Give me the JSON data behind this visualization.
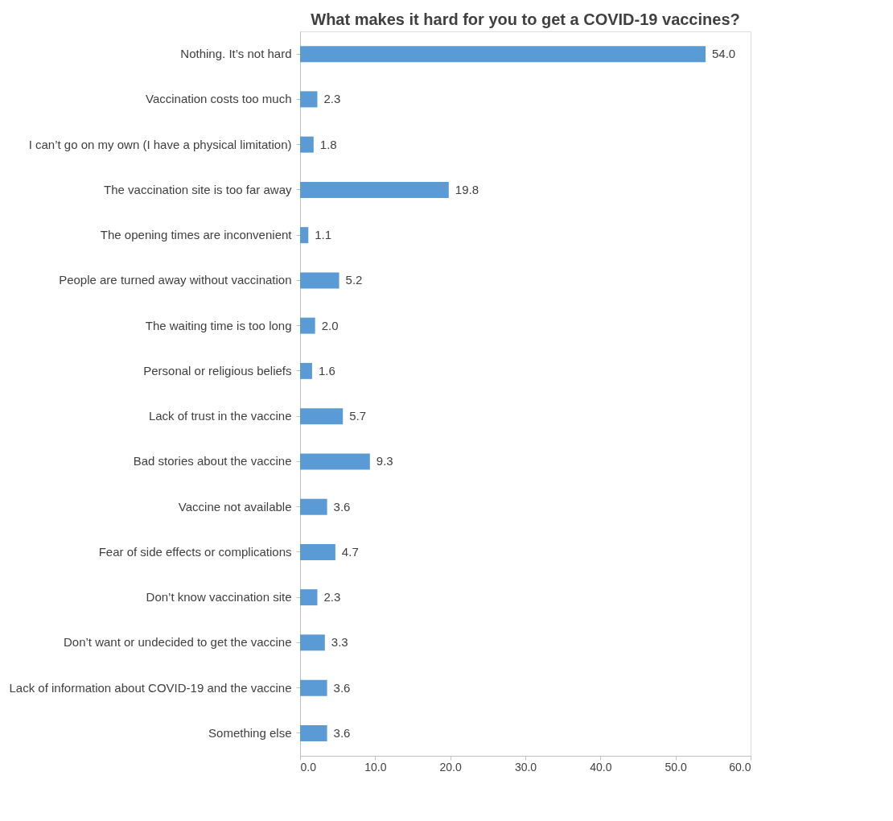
{
  "chart_data": {
    "type": "bar",
    "orientation": "horizontal",
    "title": "What makes it hard for you to get a COVID-19 vaccines?",
    "categories": [
      "Nothing. It’s not hard",
      "Vaccination costs too much",
      "I can’t go on my own (I have a physical limitation)",
      "The vaccination site is too far away",
      "The opening times are inconvenient",
      "People are turned away without vaccination",
      "The waiting time is too long",
      "Personal or religious beliefs",
      "Lack of trust in the vaccine",
      "Bad stories about the vaccine",
      "Vaccine not available",
      "Fear of side effects or complications",
      "Don’t know vaccination site",
      "Don’t want or undecided to get the vaccine",
      "Lack of information about COVID-19 and the vaccine",
      "Something else"
    ],
    "values": [
      54.0,
      2.3,
      1.8,
      19.8,
      1.1,
      5.2,
      2.0,
      1.6,
      5.7,
      9.3,
      3.6,
      4.7,
      2.3,
      3.3,
      3.6,
      3.6
    ],
    "value_labels": [
      "54.0",
      "2.3",
      "1.8",
      "19.8",
      "1.1",
      "5.2",
      "2.0",
      "1.6",
      "5.7",
      "9.3",
      "3.6",
      "4.7",
      "2.3",
      "3.3",
      "3.6",
      "3.6"
    ],
    "color": "#5b9bd5",
    "xlim": [
      0,
      60
    ],
    "xticks": [
      {
        "value": 0,
        "label": "0.0"
      },
      {
        "value": 10,
        "label": "10.0"
      },
      {
        "value": 20,
        "label": "20.0"
      },
      {
        "value": 30,
        "label": "30.0"
      },
      {
        "value": 40,
        "label": "40.0"
      },
      {
        "value": 50,
        "label": "50.0"
      },
      {
        "value": 60,
        "label": "60.0"
      }
    ],
    "grid": false
  }
}
